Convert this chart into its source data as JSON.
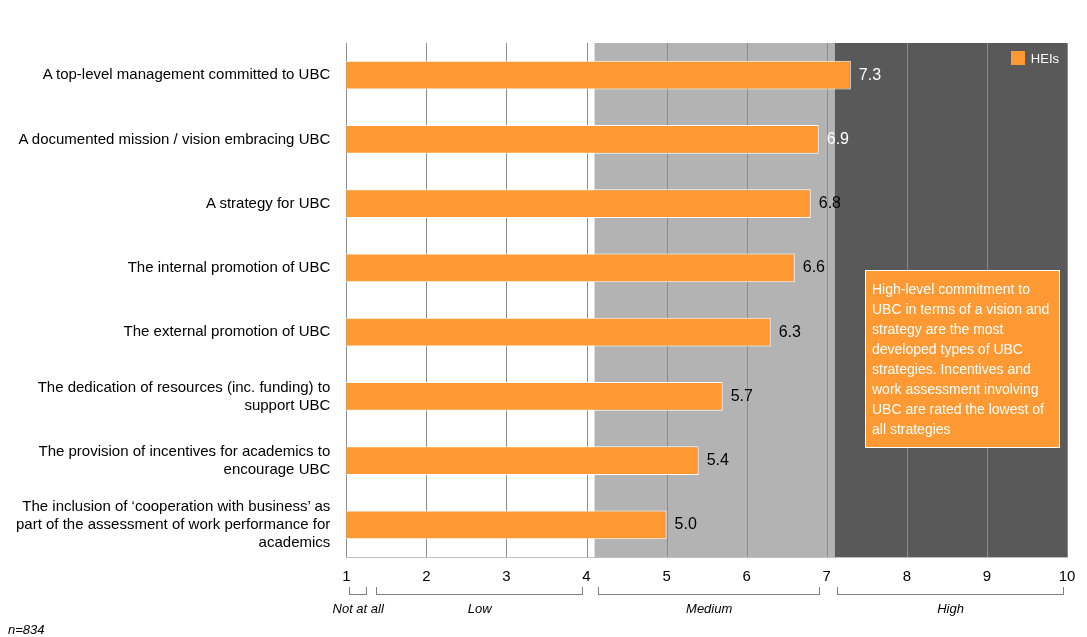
{
  "chart_data": {
    "type": "bar",
    "orientation": "horizontal",
    "categories": [
      "A top-level management committed to UBC",
      "A documented mission / vision embracing UBC",
      "A strategy for UBC",
      "The internal promotion of UBC",
      "The external promotion of UBC",
      "The dedication of resources (inc. funding) to support UBC",
      "The provision of incentives for academics to encourage UBC",
      "The inclusion of ‘cooperation with business’ as part of the assessment of work performance for academics"
    ],
    "series": [
      {
        "name": "HEIs",
        "color": "#ff9933",
        "values": [
          7.3,
          6.9,
          6.8,
          6.6,
          6.3,
          5.7,
          5.4,
          5.0
        ],
        "value_labels": [
          "7.3",
          "6.9",
          "6.8",
          "6.6",
          "6.3",
          "5.7",
          "5.4",
          "5.0"
        ]
      }
    ],
    "xlim": [
      1,
      10
    ],
    "xticks": [
      1,
      2,
      3,
      4,
      5,
      6,
      7,
      8,
      9,
      10
    ],
    "grid": "x",
    "legend": "top right",
    "bands": [
      {
        "axis": "x",
        "from": 4.1,
        "to": 7.1,
        "color": "#b3b3b3"
      },
      {
        "axis": "x",
        "from": 7.1,
        "to": 10,
        "color": "#595959"
      }
    ],
    "annotations": [
      "High-level commitment to UBC in terms of a vision and strategy are the most developed types of UBC strategies. Incentives and work assessment involving UBC are rated the lowest of all strategies",
      "n=834",
      "Not at all",
      "Low",
      "Medium",
      "High"
    ]
  }
}
